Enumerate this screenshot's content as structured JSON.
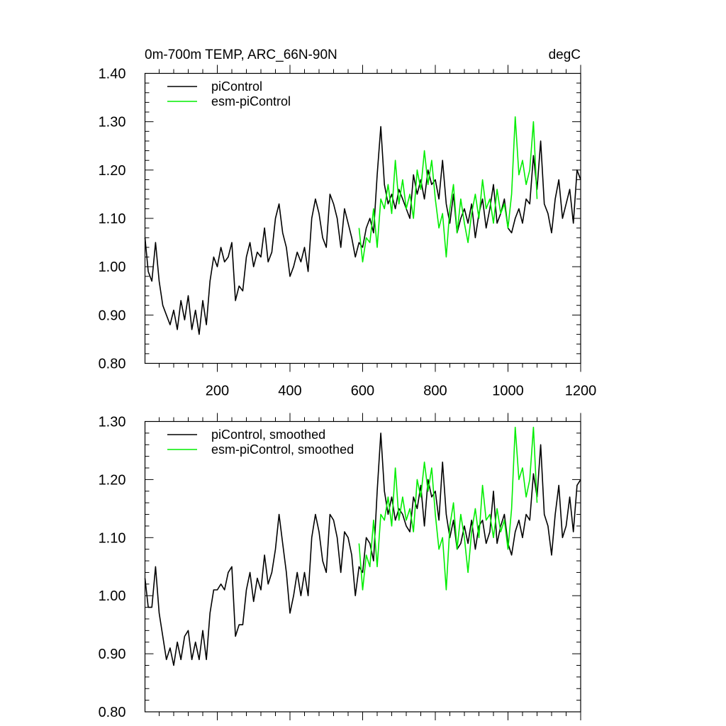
{
  "figure": {
    "title_left": "0m-700m TEMP, ARC_66N-90N",
    "title_right": "degC"
  },
  "colors": {
    "piControl": "#000000",
    "esm_piControl": "#00ee00"
  },
  "chart_data": [
    {
      "type": "line",
      "panel": "top",
      "title": "0m-700m TEMP, ARC_66N-90N",
      "units": "degC",
      "xlim": [
        1,
        1200
      ],
      "ylim": [
        0.8,
        1.4
      ],
      "x_ticks": [
        200,
        400,
        600,
        800,
        1000,
        1200
      ],
      "x_tick_labels": [
        "200",
        "400",
        "600",
        "800",
        "1000",
        "1200"
      ],
      "y_ticks": [
        0.8,
        0.9,
        1.0,
        1.1,
        1.2,
        1.3,
        1.4
      ],
      "y_tick_labels": [
        "0.80",
        "0.90",
        "1.00",
        "1.10",
        "1.20",
        "1.30",
        "1.40"
      ],
      "legend": [
        "piControl",
        "esm-piControl"
      ],
      "legend_position": "top-left",
      "series": [
        {
          "name": "piControl",
          "color_key": "piControl",
          "x": [
            1,
            10,
            20,
            30,
            40,
            50,
            60,
            70,
            80,
            90,
            100,
            110,
            120,
            130,
            140,
            150,
            160,
            170,
            180,
            190,
            200,
            210,
            220,
            230,
            240,
            250,
            260,
            270,
            280,
            290,
            300,
            310,
            320,
            330,
            340,
            350,
            360,
            370,
            380,
            390,
            400,
            410,
            420,
            430,
            440,
            450,
            460,
            470,
            480,
            490,
            500,
            510,
            520,
            530,
            540,
            550,
            560,
            570,
            580,
            590,
            600,
            610,
            620,
            630,
            640,
            650,
            660,
            670,
            680,
            690,
            700,
            710,
            720,
            730,
            740,
            750,
            760,
            770,
            780,
            790,
            800,
            810,
            820,
            830,
            840,
            850,
            860,
            870,
            880,
            890,
            900,
            910,
            920,
            930,
            940,
            950,
            960,
            970,
            980,
            990,
            1000,
            1010,
            1020,
            1030,
            1040,
            1050,
            1060,
            1070,
            1080,
            1090,
            1100,
            1110,
            1120,
            1130,
            1140,
            1150,
            1160,
            1170,
            1180,
            1190,
            1200
          ],
          "values": [
            1.06,
            0.99,
            0.97,
            1.05,
            0.97,
            0.92,
            0.9,
            0.88,
            0.91,
            0.87,
            0.93,
            0.89,
            0.94,
            0.87,
            0.91,
            0.86,
            0.93,
            0.88,
            0.97,
            1.02,
            1.0,
            1.04,
            1.01,
            1.02,
            1.05,
            0.93,
            0.96,
            0.95,
            1.02,
            1.05,
            1.0,
            1.03,
            1.02,
            1.08,
            1.01,
            1.03,
            1.1,
            1.13,
            1.07,
            1.04,
            0.98,
            1.0,
            1.03,
            1.01,
            1.04,
            0.99,
            1.1,
            1.14,
            1.11,
            1.06,
            1.04,
            1.15,
            1.13,
            1.1,
            1.04,
            1.12,
            1.09,
            1.06,
            1.02,
            1.05,
            1.04,
            1.08,
            1.1,
            1.07,
            1.19,
            1.29,
            1.17,
            1.13,
            1.15,
            1.12,
            1.16,
            1.14,
            1.12,
            1.1,
            1.19,
            1.15,
            1.18,
            1.14,
            1.2,
            1.17,
            1.18,
            1.14,
            1.22,
            1.13,
            1.09,
            1.15,
            1.07,
            1.1,
            1.12,
            1.09,
            1.13,
            1.06,
            1.11,
            1.14,
            1.08,
            1.12,
            1.17,
            1.09,
            1.11,
            1.14,
            1.08,
            1.07,
            1.1,
            1.12,
            1.09,
            1.14,
            1.13,
            1.23,
            1.16,
            1.26,
            1.13,
            1.11,
            1.07,
            1.14,
            1.18,
            1.1,
            1.13,
            1.16,
            1.09,
            1.2,
            1.18
          ]
        },
        {
          "name": "esm-piControl",
          "color_key": "esm_piControl",
          "x": [
            590,
            600,
            610,
            620,
            630,
            640,
            650,
            660,
            670,
            680,
            690,
            700,
            710,
            720,
            730,
            740,
            750,
            760,
            770,
            780,
            790,
            800,
            810,
            820,
            830,
            840,
            850,
            860,
            870,
            880,
            890,
            900,
            910,
            920,
            930,
            940,
            950,
            960,
            970,
            980,
            990,
            1000,
            1010,
            1020,
            1030,
            1040,
            1050,
            1060,
            1070,
            1080
          ],
          "values": [
            1.08,
            1.01,
            1.06,
            1.05,
            1.12,
            1.04,
            1.14,
            1.12,
            1.17,
            1.11,
            1.22,
            1.13,
            1.18,
            1.12,
            1.15,
            1.1,
            1.2,
            1.16,
            1.24,
            1.17,
            1.22,
            1.14,
            1.08,
            1.11,
            1.02,
            1.12,
            1.17,
            1.07,
            1.14,
            1.09,
            1.05,
            1.11,
            1.15,
            1.1,
            1.18,
            1.12,
            1.14,
            1.09,
            1.16,
            1.11,
            1.13,
            1.08,
            1.15,
            1.31,
            1.19,
            1.22,
            1.17,
            1.2,
            1.3,
            1.14
          ]
        }
      ]
    },
    {
      "type": "line",
      "panel": "bottom",
      "xlim": [
        1,
        1200
      ],
      "ylim": [
        0.8,
        1.3
      ],
      "x_ticks": [
        200,
        400,
        600,
        800,
        1000,
        1200
      ],
      "y_ticks": [
        0.8,
        0.9,
        1.0,
        1.1,
        1.2,
        1.3
      ],
      "y_tick_labels": [
        "0.80",
        "0.90",
        "1.00",
        "1.10",
        "1.20",
        "1.30"
      ],
      "legend": [
        "piControl, smoothed",
        "esm-piControl, smoothed"
      ],
      "legend_position": "top-left",
      "series": [
        {
          "name": "piControl, smoothed",
          "color_key": "piControl",
          "x": [
            1,
            10,
            20,
            30,
            40,
            50,
            60,
            70,
            80,
            90,
            100,
            110,
            120,
            130,
            140,
            150,
            160,
            170,
            180,
            190,
            200,
            210,
            220,
            230,
            240,
            250,
            260,
            270,
            280,
            290,
            300,
            310,
            320,
            330,
            340,
            350,
            360,
            370,
            380,
            390,
            400,
            410,
            420,
            430,
            440,
            450,
            460,
            470,
            480,
            490,
            500,
            510,
            520,
            530,
            540,
            550,
            560,
            570,
            580,
            590,
            600,
            610,
            620,
            630,
            640,
            650,
            660,
            670,
            680,
            690,
            700,
            710,
            720,
            730,
            740,
            750,
            760,
            770,
            780,
            790,
            800,
            810,
            820,
            830,
            840,
            850,
            860,
            870,
            880,
            890,
            900,
            910,
            920,
            930,
            940,
            950,
            960,
            970,
            980,
            990,
            1000,
            1010,
            1020,
            1030,
            1040,
            1050,
            1060,
            1070,
            1080,
            1090,
            1100,
            1110,
            1120,
            1130,
            1140,
            1150,
            1160,
            1170,
            1180,
            1190,
            1200
          ],
          "values": [
            1.03,
            0.98,
            0.98,
            1.05,
            0.97,
            0.93,
            0.89,
            0.91,
            0.88,
            0.92,
            0.89,
            0.93,
            0.94,
            0.89,
            0.92,
            0.89,
            0.94,
            0.89,
            0.97,
            1.01,
            1.01,
            1.02,
            1.01,
            1.04,
            1.05,
            0.93,
            0.95,
            0.95,
            1.01,
            1.04,
            0.99,
            1.03,
            1.01,
            1.07,
            1.02,
            1.04,
            1.08,
            1.14,
            1.09,
            1.04,
            0.97,
            1.0,
            1.04,
            1.0,
            1.04,
            1.0,
            1.1,
            1.14,
            1.11,
            1.06,
            1.04,
            1.14,
            1.13,
            1.1,
            1.04,
            1.11,
            1.1,
            1.07,
            1.0,
            1.05,
            1.04,
            1.1,
            1.09,
            1.06,
            1.18,
            1.28,
            1.18,
            1.14,
            1.17,
            1.13,
            1.15,
            1.14,
            1.12,
            1.11,
            1.17,
            1.15,
            1.19,
            1.12,
            1.2,
            1.17,
            1.18,
            1.13,
            1.23,
            1.14,
            1.1,
            1.13,
            1.08,
            1.09,
            1.12,
            1.09,
            1.13,
            1.08,
            1.12,
            1.13,
            1.09,
            1.11,
            1.18,
            1.09,
            1.12,
            1.14,
            1.09,
            1.07,
            1.11,
            1.13,
            1.1,
            1.14,
            1.13,
            1.21,
            1.17,
            1.26,
            1.14,
            1.12,
            1.07,
            1.14,
            1.19,
            1.1,
            1.12,
            1.17,
            1.11,
            1.19,
            1.2
          ]
        },
        {
          "name": "esm-piControl, smoothed",
          "color_key": "esm_piControl",
          "x": [
            590,
            600,
            610,
            620,
            630,
            640,
            650,
            660,
            670,
            680,
            690,
            700,
            710,
            720,
            730,
            740,
            750,
            760,
            770,
            780,
            790,
            800,
            810,
            820,
            830,
            840,
            850,
            860,
            870,
            880,
            890,
            900,
            910,
            920,
            930,
            940,
            950,
            960,
            970,
            980,
            990,
            1000,
            1010,
            1020,
            1030,
            1040,
            1050,
            1060,
            1070,
            1080
          ],
          "values": [
            1.09,
            1.01,
            1.07,
            1.05,
            1.13,
            1.05,
            1.14,
            1.13,
            1.17,
            1.12,
            1.22,
            1.13,
            1.17,
            1.13,
            1.15,
            1.11,
            1.2,
            1.17,
            1.23,
            1.18,
            1.22,
            1.14,
            1.08,
            1.1,
            1.01,
            1.12,
            1.16,
            1.08,
            1.14,
            1.1,
            1.04,
            1.11,
            1.15,
            1.1,
            1.19,
            1.13,
            1.14,
            1.1,
            1.15,
            1.11,
            1.13,
            1.08,
            1.15,
            1.29,
            1.2,
            1.22,
            1.17,
            1.2,
            1.29,
            1.16
          ]
        }
      ]
    }
  ]
}
